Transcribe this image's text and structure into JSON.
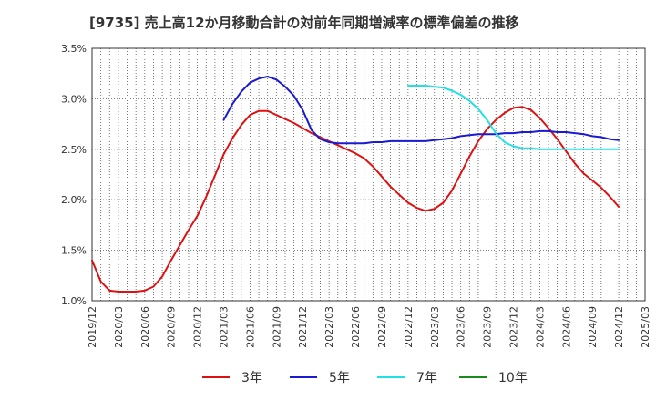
{
  "chart_data": {
    "type": "line",
    "title": "[9735]  売上高12か月移動合計の対前年同期増減率の標準偏差の推移",
    "xlabel": "",
    "ylabel": "",
    "ylim": [
      1.0,
      3.5
    ],
    "y_ticks": [
      "1.0%",
      "1.5%",
      "2.0%",
      "2.5%",
      "3.0%",
      "3.5%"
    ],
    "x_range": [
      "2019/12",
      "2025/03"
    ],
    "x_ticks": [
      "2019/12",
      "2020/03",
      "2020/06",
      "2020/09",
      "2020/12",
      "2021/03",
      "2021/06",
      "2021/09",
      "2021/12",
      "2022/03",
      "2022/06",
      "2022/09",
      "2022/12",
      "2023/03",
      "2023/06",
      "2023/09",
      "2023/12",
      "2024/03",
      "2024/06",
      "2024/09",
      "2024/12",
      "2025/03"
    ],
    "grid": true,
    "legend_position": "bottom",
    "series": [
      {
        "name": "3年",
        "color": "#dd1111",
        "points": [
          [
            "2019/12",
            1.4
          ],
          [
            "2020/01",
            1.19
          ],
          [
            "2020/02",
            1.1
          ],
          [
            "2020/03",
            1.09
          ],
          [
            "2020/04",
            1.09
          ],
          [
            "2020/05",
            1.09
          ],
          [
            "2020/06",
            1.1
          ],
          [
            "2020/07",
            1.14
          ],
          [
            "2020/08",
            1.24
          ],
          [
            "2020/09",
            1.4
          ],
          [
            "2020/10",
            1.55
          ],
          [
            "2020/11",
            1.7
          ],
          [
            "2020/12",
            1.84
          ],
          [
            "2021/01",
            2.03
          ],
          [
            "2021/02",
            2.24
          ],
          [
            "2021/03",
            2.45
          ],
          [
            "2021/04",
            2.61
          ],
          [
            "2021/05",
            2.74
          ],
          [
            "2021/06",
            2.84
          ],
          [
            "2021/07",
            2.88
          ],
          [
            "2021/08",
            2.88
          ],
          [
            "2021/09",
            2.84
          ],
          [
            "2021/10",
            2.8
          ],
          [
            "2021/11",
            2.76
          ],
          [
            "2021/12",
            2.71
          ],
          [
            "2022/01",
            2.66
          ],
          [
            "2022/02",
            2.62
          ],
          [
            "2022/03",
            2.58
          ],
          [
            "2022/04",
            2.54
          ],
          [
            "2022/05",
            2.5
          ],
          [
            "2022/06",
            2.46
          ],
          [
            "2022/07",
            2.41
          ],
          [
            "2022/08",
            2.33
          ],
          [
            "2022/09",
            2.23
          ],
          [
            "2022/10",
            2.13
          ],
          [
            "2022/11",
            2.05
          ],
          [
            "2022/12",
            1.97
          ],
          [
            "2023/01",
            1.92
          ],
          [
            "2023/02",
            1.89
          ],
          [
            "2023/03",
            1.91
          ],
          [
            "2023/04",
            1.97
          ],
          [
            "2023/05",
            2.09
          ],
          [
            "2023/06",
            2.26
          ],
          [
            "2023/07",
            2.43
          ],
          [
            "2023/08",
            2.58
          ],
          [
            "2023/09",
            2.7
          ],
          [
            "2023/10",
            2.79
          ],
          [
            "2023/11",
            2.86
          ],
          [
            "2023/12",
            2.91
          ],
          [
            "2024/01",
            2.92
          ],
          [
            "2024/02",
            2.89
          ],
          [
            "2024/03",
            2.81
          ],
          [
            "2024/04",
            2.71
          ],
          [
            "2024/05",
            2.6
          ],
          [
            "2024/06",
            2.48
          ],
          [
            "2024/07",
            2.36
          ],
          [
            "2024/08",
            2.26
          ],
          [
            "2024/09",
            2.19
          ],
          [
            "2024/10",
            2.12
          ],
          [
            "2024/11",
            2.03
          ],
          [
            "2024/12",
            1.93
          ]
        ]
      },
      {
        "name": "5年",
        "color": "#1a1ad0",
        "points": [
          [
            "2021/03",
            2.79
          ],
          [
            "2021/04",
            2.95
          ],
          [
            "2021/05",
            3.07
          ],
          [
            "2021/06",
            3.16
          ],
          [
            "2021/07",
            3.2
          ],
          [
            "2021/08",
            3.22
          ],
          [
            "2021/09",
            3.19
          ],
          [
            "2021/10",
            3.12
          ],
          [
            "2021/11",
            3.03
          ],
          [
            "2021/12",
            2.89
          ],
          [
            "2022/01",
            2.69
          ],
          [
            "2022/02",
            2.6
          ],
          [
            "2022/03",
            2.57
          ],
          [
            "2022/04",
            2.56
          ],
          [
            "2022/05",
            2.56
          ],
          [
            "2022/06",
            2.56
          ],
          [
            "2022/07",
            2.56
          ],
          [
            "2022/08",
            2.57
          ],
          [
            "2022/09",
            2.57
          ],
          [
            "2022/10",
            2.58
          ],
          [
            "2022/11",
            2.58
          ],
          [
            "2022/12",
            2.58
          ],
          [
            "2023/01",
            2.58
          ],
          [
            "2023/02",
            2.58
          ],
          [
            "2023/03",
            2.59
          ],
          [
            "2023/04",
            2.6
          ],
          [
            "2023/05",
            2.61
          ],
          [
            "2023/06",
            2.63
          ],
          [
            "2023/07",
            2.64
          ],
          [
            "2023/08",
            2.65
          ],
          [
            "2023/09",
            2.65
          ],
          [
            "2023/10",
            2.65
          ],
          [
            "2023/11",
            2.66
          ],
          [
            "2023/12",
            2.66
          ],
          [
            "2024/01",
            2.67
          ],
          [
            "2024/02",
            2.67
          ],
          [
            "2024/03",
            2.68
          ],
          [
            "2024/04",
            2.68
          ],
          [
            "2024/05",
            2.67
          ],
          [
            "2024/06",
            2.67
          ],
          [
            "2024/07",
            2.66
          ],
          [
            "2024/08",
            2.65
          ],
          [
            "2024/09",
            2.63
          ],
          [
            "2024/10",
            2.62
          ],
          [
            "2024/11",
            2.6
          ],
          [
            "2024/12",
            2.59
          ]
        ]
      },
      {
        "name": "7年",
        "color": "#22e0e8",
        "points": [
          [
            "2022/12",
            3.13
          ],
          [
            "2023/01",
            3.13
          ],
          [
            "2023/02",
            3.13
          ],
          [
            "2023/03",
            3.12
          ],
          [
            "2023/04",
            3.11
          ],
          [
            "2023/05",
            3.08
          ],
          [
            "2023/06",
            3.04
          ],
          [
            "2023/07",
            2.98
          ],
          [
            "2023/08",
            2.9
          ],
          [
            "2023/09",
            2.79
          ],
          [
            "2023/10",
            2.66
          ],
          [
            "2023/11",
            2.57
          ],
          [
            "2023/12",
            2.53
          ],
          [
            "2024/01",
            2.51
          ],
          [
            "2024/02",
            2.51
          ],
          [
            "2024/03",
            2.5
          ],
          [
            "2024/04",
            2.5
          ],
          [
            "2024/05",
            2.5
          ],
          [
            "2024/06",
            2.5
          ],
          [
            "2024/07",
            2.5
          ],
          [
            "2024/08",
            2.5
          ],
          [
            "2024/09",
            2.5
          ],
          [
            "2024/10",
            2.5
          ],
          [
            "2024/11",
            2.5
          ],
          [
            "2024/12",
            2.5
          ]
        ]
      },
      {
        "name": "10年",
        "color": "#1a8a1a",
        "points": []
      }
    ]
  }
}
